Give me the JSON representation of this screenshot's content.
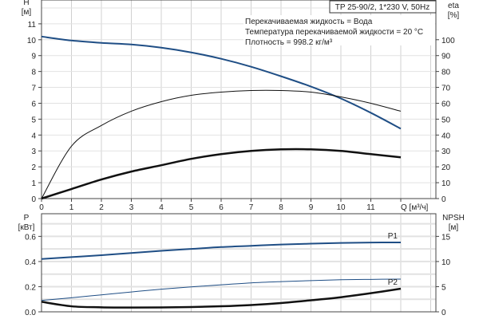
{
  "chart_data": [
    {
      "type": "line",
      "title": "TP 25-90/2, 1*230 V, 50Hz",
      "annotations": [
        "Перекачиваемая жидкость = Вода",
        "Температура перекачиваемой жидкости = 20 °C",
        "Плотность = 998.2 кг/м³"
      ],
      "xlabel": "Q [м³/ч]",
      "ylabel_left": [
        "H",
        "[м]"
      ],
      "ylabel_right": [
        "eta",
        "[%]"
      ],
      "xlim": [
        0,
        13.2
      ],
      "ylim_left": [
        0,
        12.5
      ],
      "ylim_right": [
        0,
        125
      ],
      "x_ticks": [
        0,
        1,
        2,
        3,
        4,
        5,
        6,
        7,
        8,
        9,
        10,
        11
      ],
      "y_ticks_left": [
        0,
        1,
        2,
        3,
        4,
        5,
        6,
        7,
        8,
        9,
        10,
        11
      ],
      "y_ticks_right": [
        0,
        10,
        20,
        30,
        40,
        50,
        60,
        70,
        80,
        90,
        100
      ],
      "grid": true,
      "x": [
        0,
        1,
        2,
        3,
        4,
        5,
        6,
        7,
        8,
        9,
        10,
        11,
        12
      ],
      "series": [
        {
          "axis": "left",
          "color": "#1f4e85",
          "width": 2,
          "values": [
            10.2,
            9.95,
            9.8,
            9.7,
            9.5,
            9.2,
            8.8,
            8.3,
            7.7,
            7.05,
            6.3,
            5.4,
            4.4
          ]
        },
        {
          "axis": "right",
          "color": "#111111",
          "width": 1,
          "values": [
            0,
            33,
            46,
            55,
            61,
            65,
            67,
            68,
            68,
            67,
            64,
            60,
            55
          ]
        },
        {
          "axis": "right",
          "color": "#111111",
          "width": 2.5,
          "values": [
            0,
            6,
            12,
            17,
            21,
            25,
            28,
            30,
            31,
            31,
            30,
            28,
            26
          ]
        }
      ]
    },
    {
      "type": "line",
      "xlabel": "",
      "ylabel_left": [
        "P",
        "[кВт]"
      ],
      "ylabel_right": [
        "NPSH",
        "[м]"
      ],
      "xlim": [
        0,
        13.2
      ],
      "ylim_left": [
        0,
        0.78
      ],
      "ylim_right": [
        0,
        19.5
      ],
      "y_ticks_left": [
        "0.0",
        "0.2",
        "0.4",
        "0.6"
      ],
      "y_ticks_right": [
        0,
        5,
        10,
        15
      ],
      "grid": true,
      "x": [
        0,
        1,
        2,
        3,
        4,
        5,
        6,
        7,
        8,
        9,
        10,
        11,
        12
      ],
      "series": [
        {
          "name": "P1",
          "axis": "left",
          "color": "#1f4e85",
          "width": 2,
          "values": [
            0.42,
            0.435,
            0.45,
            0.468,
            0.485,
            0.5,
            0.515,
            0.525,
            0.535,
            0.542,
            0.548,
            0.551,
            0.552
          ]
        },
        {
          "axis": "left",
          "color": "#1f4e85",
          "width": 1,
          "values": [
            0.09,
            0.112,
            0.135,
            0.158,
            0.18,
            0.198,
            0.215,
            0.23,
            0.24,
            0.248,
            0.255,
            0.258,
            0.26
          ]
        },
        {
          "name": "P2",
          "axis": "right",
          "color": "#111111",
          "width": 2.5,
          "values": [
            2.0,
            1.1,
            0.9,
            0.85,
            0.88,
            0.95,
            1.1,
            1.35,
            1.75,
            2.3,
            2.9,
            3.7,
            4.6
          ]
        }
      ]
    }
  ]
}
